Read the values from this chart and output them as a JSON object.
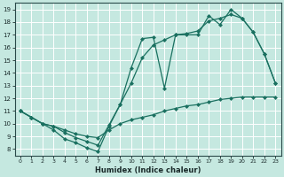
{
  "xlabel": "Humidex (Indice chaleur)",
  "xlim": [
    -0.5,
    23.5
  ],
  "ylim": [
    7.5,
    19.5
  ],
  "xticks": [
    0,
    1,
    2,
    3,
    4,
    5,
    6,
    7,
    8,
    9,
    10,
    11,
    12,
    13,
    14,
    15,
    16,
    17,
    18,
    19,
    20,
    21,
    22,
    23
  ],
  "yticks": [
    8,
    9,
    10,
    11,
    12,
    13,
    14,
    15,
    16,
    17,
    18,
    19
  ],
  "bg_color": "#c5e8e0",
  "line_color": "#1a7060",
  "grid_color": "#ffffff",
  "line1_x": [
    0,
    1,
    2,
    3,
    4,
    5,
    6,
    7,
    8,
    9,
    10,
    11,
    12,
    13,
    14,
    15,
    16,
    17,
    18,
    19,
    20,
    21,
    22,
    23
  ],
  "line1_y": [
    11.0,
    10.5,
    10.0,
    9.5,
    8.8,
    8.5,
    8.1,
    7.8,
    9.8,
    11.5,
    14.4,
    16.7,
    16.8,
    12.8,
    17.0,
    17.0,
    17.0,
    18.5,
    17.8,
    19.0,
    18.3,
    17.2,
    15.5,
    13.2
  ],
  "line2_x": [
    0,
    1,
    2,
    3,
    4,
    5,
    6,
    7,
    8,
    9,
    10,
    11,
    12,
    13,
    14,
    15,
    16,
    17,
    18,
    19,
    20,
    21,
    22,
    23
  ],
  "line2_y": [
    11.0,
    10.5,
    10.0,
    9.8,
    9.3,
    8.9,
    8.6,
    8.3,
    9.9,
    11.5,
    13.2,
    15.2,
    16.2,
    16.6,
    17.0,
    17.1,
    17.3,
    18.1,
    18.3,
    18.6,
    18.3,
    17.2,
    15.5,
    13.2
  ],
  "line3_x": [
    0,
    1,
    2,
    3,
    4,
    5,
    6,
    7,
    8,
    9,
    10,
    11,
    12,
    13,
    14,
    15,
    16,
    17,
    18,
    19,
    20,
    21,
    22,
    23
  ],
  "line3_y": [
    11.0,
    10.5,
    10.0,
    9.8,
    9.5,
    9.2,
    9.0,
    8.9,
    9.5,
    10.0,
    10.3,
    10.5,
    10.7,
    11.0,
    11.2,
    11.4,
    11.5,
    11.7,
    11.9,
    12.0,
    12.1,
    12.1,
    12.1,
    12.1
  ]
}
